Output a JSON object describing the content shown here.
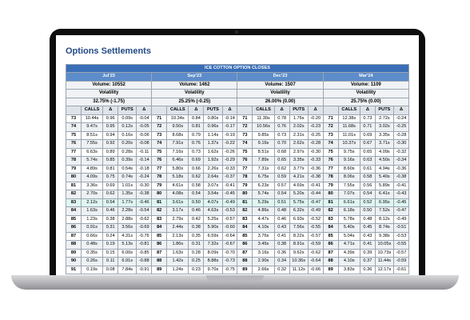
{
  "page": {
    "title": "Options Settlements"
  },
  "table": {
    "banner": "ICE COTTON OPTION CLOSES",
    "column_headers": [
      "CALLS",
      "Δ",
      "PUTS",
      "Δ"
    ],
    "months": [
      {
        "name": "Jul'23",
        "volume": "Volume: 10552",
        "vol_label": "Volatility",
        "vol_value": "32.75% (-1.75)"
      },
      {
        "name": "Sep'23",
        "volume": "Volume: 1462",
        "vol_label": "Volatility",
        "vol_value": "25.25% (-0.25)"
      },
      {
        "name": "Dec'23",
        "volume": "Volume: 1507",
        "vol_label": "Volatility",
        "vol_value": "26.00% (0.00)"
      },
      {
        "name": "Mar'24",
        "volume": "Volume: 1109",
        "vol_label": "Volatility",
        "vol_value": "25.75% (0.00)"
      }
    ],
    "rows": [
      [
        [
          "73",
          "10.44s",
          "0.96",
          "0.09s",
          "-0.04"
        ],
        [
          "71",
          "10.34s",
          "0.84",
          "0.80s",
          "-0.14"
        ],
        [
          "71",
          "11.30s",
          "0.78",
          "1.76s",
          "-0.20"
        ],
        [
          "71",
          "12.38s",
          "0.73",
          "2.72s",
          "-0.24"
        ]
      ],
      [
        [
          "74",
          "9.47s",
          "0.95",
          "0.12s",
          "-0.05"
        ],
        [
          "72",
          "9.50s",
          "0.81",
          "0.96s",
          "-0.17"
        ],
        [
          "72",
          "10.56s",
          "0.76",
          "2.02s",
          "-0.23"
        ],
        [
          "72",
          "11.68s",
          "0.71",
          "3.02s",
          "-0.25"
        ]
      ],
      [
        [
          "75",
          "8.51s",
          "0.94",
          "0.16s",
          "-0.06"
        ],
        [
          "73",
          "8.68s",
          "0.79",
          "1.14s",
          "-0.19"
        ],
        [
          "73",
          "9.85s",
          "0.73",
          "2.31s",
          "-0.25"
        ],
        [
          "73",
          "11.01s",
          "0.69",
          "3.35s",
          "-0.28"
        ]
      ],
      [
        [
          "76",
          "7.55s",
          "0.92",
          "0.20s",
          "-0.08"
        ],
        [
          "74",
          "7.91s",
          "0.76",
          "1.37s",
          "-0.22"
        ],
        [
          "74",
          "9.16s",
          "0.70",
          "2.62s",
          "-0.28"
        ],
        [
          "74",
          "10.37s",
          "0.67",
          "3.71s",
          "-0.30"
        ]
      ],
      [
        [
          "77",
          "6.63s",
          "0.89",
          "0.28s",
          "-0.11"
        ],
        [
          "75",
          "7.16s",
          "0.73",
          "1.62s",
          "-0.26"
        ],
        [
          "75",
          "8.51s",
          "0.68",
          "2.97s",
          "-0.30"
        ],
        [
          "75",
          "9.75s",
          "0.65",
          "4.09s",
          "-0.32"
        ]
      ],
      [
        [
          "78",
          "5.74s",
          "0.85",
          "0.39s",
          "-0.14"
        ],
        [
          "76",
          "6.46s",
          "0.69",
          "1.92s",
          "-0.29"
        ],
        [
          "76",
          "7.89s",
          "0.65",
          "3.35s",
          "-0.33"
        ],
        [
          "76",
          "9.16s",
          "0.63",
          "4.50s",
          "-0.34"
        ]
      ],
      [
        [
          "79",
          "4.89s",
          "0.81",
          "0.54s",
          "-0.18"
        ],
        [
          "77",
          "5.80s",
          "0.66",
          "2.26s",
          "-0.33"
        ],
        [
          "77",
          "7.31s",
          "0.62",
          "3.77s",
          "-0.36"
        ],
        [
          "77",
          "8.60s",
          "0.61",
          "4.94s",
          "-0.36"
        ]
      ],
      [
        [
          "80",
          "4.09s",
          "0.75",
          "0.74s",
          "-0.24"
        ],
        [
          "78",
          "5.18s",
          "0.62",
          "2.64s",
          "-0.37"
        ],
        [
          "78",
          "6.75s",
          "0.59",
          "4.21s",
          "-0.38"
        ],
        [
          "78",
          "8.06s",
          "0.58",
          "5.40s",
          "-0.38"
        ]
      ],
      [
        [
          "81",
          "3.36s",
          "0.69",
          "1.01s",
          "-0.30"
        ],
        [
          "79",
          "4.61s",
          "0.58",
          "3.07s",
          "-0.41"
        ],
        [
          "79",
          "6.23s",
          "0.57",
          "4.69s",
          "-0.41"
        ],
        [
          "79",
          "7.55s",
          "0.56",
          "5.89s",
          "-0.41"
        ]
      ],
      [
        [
          "82",
          "2.70s",
          "0.62",
          "1.35s",
          "-0.38"
        ],
        [
          "80",
          "4.08s",
          "0.54",
          "3.54s",
          "-0.45"
        ],
        [
          "80",
          "5.74s",
          "0.54",
          "5.20s",
          "-0.44"
        ],
        [
          "80",
          "7.07s",
          "0.54",
          "6.41s",
          "-0.43"
        ]
      ],
      [
        [
          "83",
          "2.12s",
          "0.54",
          "1.77s",
          "-0.46"
        ],
        [
          "81",
          "3.61s",
          "0.50",
          "4.07s",
          "-0.49"
        ],
        [
          "81",
          "5.29s",
          "0.51",
          "5.75s",
          "-0.47"
        ],
        [
          "81",
          "6.61s",
          "0.52",
          "6.95s",
          "-0.45"
        ]
      ],
      [
        [
          "84",
          "1.63s",
          "0.46",
          "2.28s",
          "-0.54"
        ],
        [
          "82",
          "3.17s",
          "0.46",
          "4.63s",
          "-0.53"
        ],
        [
          "82",
          "4.86s",
          "0.48",
          "6.32s",
          "-0.49"
        ],
        [
          "82",
          "6.18s",
          "0.50",
          "7.52s",
          "-0.47"
        ]
      ],
      [
        [
          "85",
          "1.23s",
          "0.38",
          "2.88s",
          "-0.62"
        ],
        [
          "83",
          "2.79s",
          "0.42",
          "5.25s",
          "-0.57"
        ],
        [
          "83",
          "4.47s",
          "0.46",
          "6.93s",
          "-0.52"
        ],
        [
          "83",
          "5.78s",
          "0.48",
          "8.12s",
          "-0.49"
        ]
      ],
      [
        [
          "86",
          "0.91s",
          "0.31",
          "3.56s",
          "-0.69"
        ],
        [
          "84",
          "2.44s",
          "0.38",
          "5.90s",
          "-0.60"
        ],
        [
          "84",
          "4.10s",
          "0.43",
          "7.56s",
          "-0.55"
        ],
        [
          "84",
          "5.40s",
          "0.45",
          "8.74s",
          "-0.51"
        ]
      ],
      [
        [
          "87",
          "0.66s",
          "0.24",
          "4.31s",
          "-0.76"
        ],
        [
          "85",
          "2.13s",
          "0.35",
          "6.59s",
          "-0.64"
        ],
        [
          "85",
          "3.76s",
          "0.41",
          "8.22s",
          "-0.57"
        ],
        [
          "85",
          "5.04s",
          "0.43",
          "9.38s",
          "-0.53"
        ]
      ],
      [
        [
          "88",
          "0.48s",
          "0.19",
          "5.13s",
          "-0.81"
        ],
        [
          "86",
          "1.86s",
          "0.31",
          "7.32s",
          "-0.67"
        ],
        [
          "86",
          "3.45s",
          "0.38",
          "8.91s",
          "-0.59"
        ],
        [
          "86",
          "4.71s",
          "0.41",
          "10.05s",
          "-0.55"
        ]
      ],
      [
        [
          "89",
          "0.35s",
          "0.15",
          "6.00s",
          "-0.85"
        ],
        [
          "87",
          "1.63s",
          "0.28",
          "8.09s",
          "-0.70"
        ],
        [
          "87",
          "3.16s",
          "0.36",
          "9.62s",
          "-0.62"
        ],
        [
          "87",
          "4.39s",
          "0.39",
          "10.73s",
          "-0.57"
        ]
      ],
      [
        [
          "90",
          "0.26s",
          "0.11",
          "6.91s",
          "-0.88"
        ],
        [
          "88",
          "1.42s",
          "0.25",
          "8.88s",
          "-0.73"
        ],
        [
          "88",
          "2.90s",
          "0.34",
          "10.36s",
          "-0.64"
        ],
        [
          "88",
          "4.10s",
          "0.37",
          "11.44s",
          "-0.59"
        ]
      ],
      [
        [
          "91",
          "0.19s",
          "0.08",
          "7.84s",
          "-0.91"
        ],
        [
          "89",
          "1.24s",
          "0.23",
          "9.70s",
          "-0.75"
        ],
        [
          "89",
          "2.66s",
          "0.32",
          "11.12s",
          "-0.66"
        ],
        [
          "89",
          "3.83s",
          "0.36",
          "12.17s",
          "-0.61"
        ]
      ]
    ]
  }
}
